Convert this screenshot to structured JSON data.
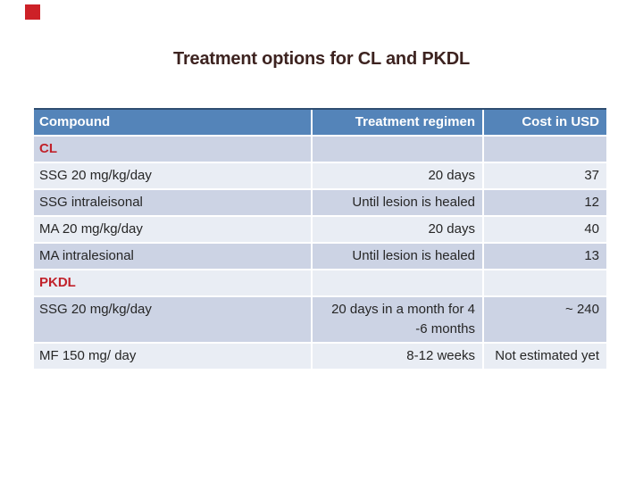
{
  "slide": {
    "title": "Treatment options for CL and PKDL",
    "decor": {
      "red_square_color": "#cd2127"
    }
  },
  "colors": {
    "header_background": "#5484b9",
    "header_text": "#ffffff",
    "row_band_dark": "#ccd3e4",
    "row_band_light": "#e9edf4",
    "table_top_border": "#2e4d71",
    "section_label_red": "#c1222b",
    "body_text": "#262626",
    "title_text": "#3d2320"
  },
  "table": {
    "columns": [
      {
        "label": "Compound",
        "align": "left"
      },
      {
        "label": "Treatment regimen",
        "align": "right"
      },
      {
        "label": "Cost in USD",
        "align": "right"
      }
    ],
    "rows": [
      {
        "type": "section",
        "label": "CL",
        "regimen": "",
        "cost": ""
      },
      {
        "type": "data",
        "compound": "SSG 20 mg/kg/day",
        "regimen": "20 days",
        "cost": "37"
      },
      {
        "type": "data",
        "compound": "SSG intraleisonal",
        "regimen": "Until lesion is healed",
        "cost": "12"
      },
      {
        "type": "data",
        "compound": "MA 20 mg/kg/day",
        "regimen": "20 days",
        "cost": "40"
      },
      {
        "type": "data",
        "compound": "MA intralesional",
        "regimen": "Until lesion is healed",
        "cost": "13"
      },
      {
        "type": "section",
        "label": "PKDL",
        "regimen": "",
        "cost": ""
      },
      {
        "type": "data",
        "compound": "SSG 20 mg/kg/day",
        "regimen": "20 days in a month for 4 -6 months",
        "cost": "~ 240"
      },
      {
        "type": "data",
        "compound": "MF 150 mg/ day",
        "regimen": "8-12 weeks",
        "cost": "Not estimated yet"
      }
    ]
  }
}
